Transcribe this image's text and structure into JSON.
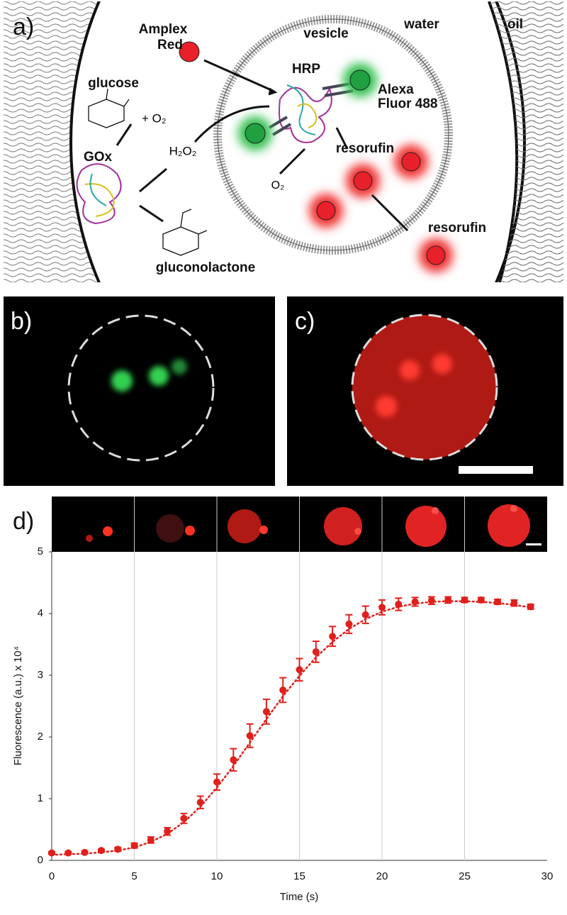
{
  "panel_labels": [
    "a)",
    "b)",
    "c)",
    "d)"
  ],
  "panel_a": {
    "amplex_1": "Amplex",
    "amplex_2": "Red",
    "vesicle": "vesicle",
    "water": "water",
    "oil": "oil",
    "hrp": "HRP",
    "alexa_1": "Alexa",
    "alexa_2": "Fluor 488",
    "glucose": "glucose",
    "o2_plus": "+ O₂",
    "gox": "GOx",
    "h2o2": "H₂O₂",
    "o2": "O₂",
    "resorufin_in": "resorufin",
    "resorufin_out": "resorufin",
    "gluconolactone": "gluconolactone"
  },
  "chart_data": {
    "type": "line",
    "x_label": "Time (s)",
    "y_label": "Fluorescence (a.u.) x 10⁴",
    "x": [
      0,
      1,
      2,
      3,
      4,
      5,
      6,
      7,
      8,
      9,
      10,
      11,
      12,
      13,
      14,
      15,
      16,
      17,
      18,
      19,
      20,
      21,
      22,
      23,
      24,
      25,
      26,
      27,
      28,
      29
    ],
    "series": [
      {
        "color": "#e0201c",
        "markers": true,
        "values": [
          0.12,
          0.12,
          0.13,
          0.16,
          0.18,
          0.24,
          0.33,
          0.47,
          0.68,
          0.94,
          1.27,
          1.63,
          2.02,
          2.41,
          2.76,
          3.09,
          3.38,
          3.63,
          3.83,
          3.98,
          4.1,
          4.15,
          4.19,
          4.21,
          4.22,
          4.22,
          4.22,
          4.19,
          4.17,
          4.11
        ],
        "errors": [
          0.02,
          0.02,
          0.02,
          0.02,
          0.03,
          0.04,
          0.05,
          0.06,
          0.08,
          0.1,
          0.13,
          0.18,
          0.19,
          0.2,
          0.2,
          0.18,
          0.17,
          0.16,
          0.15,
          0.14,
          0.12,
          0.1,
          0.07,
          0.06,
          0.05,
          0.04,
          0.04,
          0.04,
          0.05,
          0.04
        ]
      },
      {
        "color": "#e0201c",
        "style": "dotted",
        "values": [
          0.09,
          0.1,
          0.11,
          0.13,
          0.16,
          0.21,
          0.3,
          0.43,
          0.62,
          0.87,
          1.18,
          1.53,
          1.91,
          2.29,
          2.66,
          2.99,
          3.29,
          3.54,
          3.75,
          3.91,
          4.03,
          4.11,
          4.16,
          4.19,
          4.2,
          4.2,
          4.19,
          4.17,
          4.14,
          4.1
        ]
      }
    ],
    "xlim": [
      0,
      30
    ],
    "xticks": [
      0,
      5,
      10,
      15,
      20,
      25,
      30
    ],
    "ylim": [
      0,
      5
    ],
    "yticks": [
      0,
      1,
      2,
      3,
      4,
      5
    ],
    "grid": "x"
  }
}
